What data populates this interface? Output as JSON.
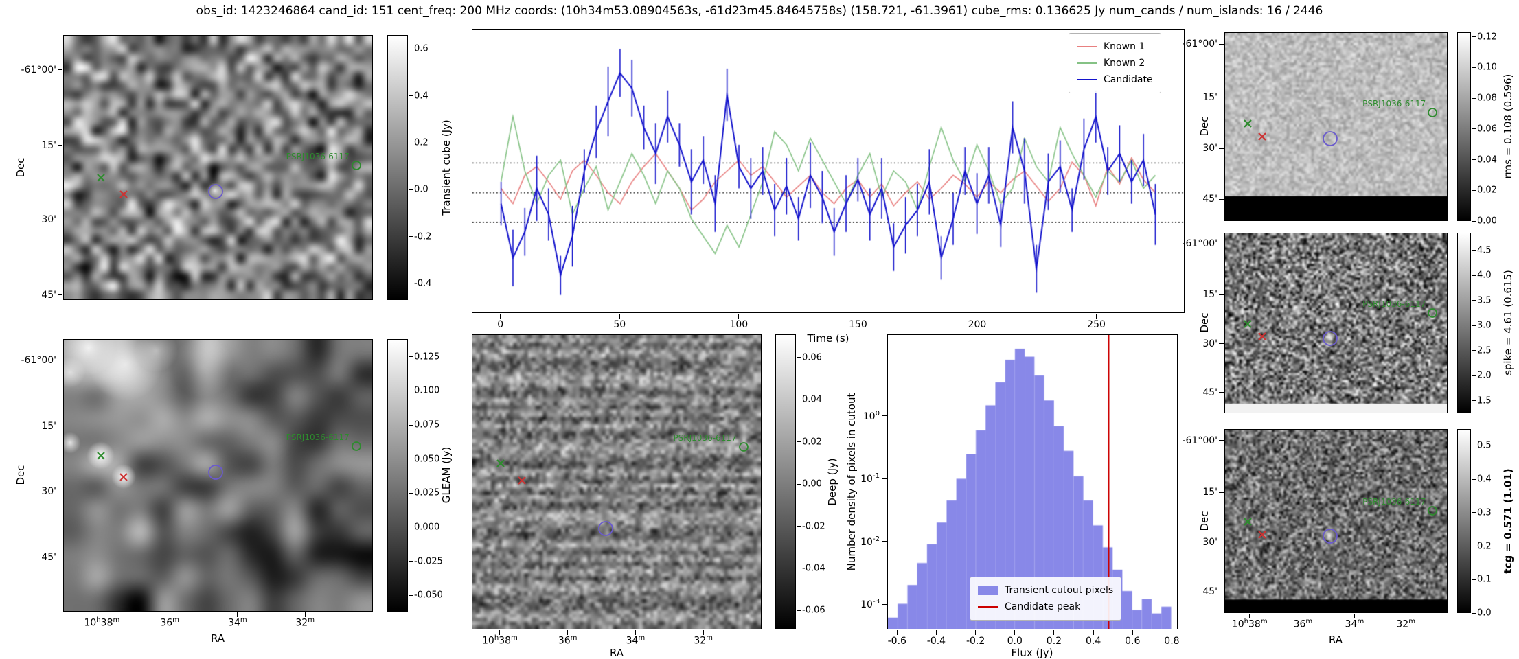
{
  "title": "obs_id: 1423246864 cand_id: 151 cent_freq: 200 MHz coords: (10h34m53.08904563s, -61d23m45.84645758s) (158.721, -61.3961) cube_rms: 0.136625 Jy num_cands / num_islands: 16 / 2446",
  "axes": {
    "dec_label": "Dec",
    "ra_label": "RA",
    "dec_ticks": [
      "-61°00'",
      "15'",
      "30'",
      "45'"
    ],
    "ra_ticks": [
      "10h38m",
      "36m",
      "34m",
      "32m"
    ]
  },
  "markers": {
    "known2": {
      "type": "x",
      "color": "#2e8b2e"
    },
    "known1": {
      "type": "x",
      "color": "#cc3333"
    },
    "candidate": {
      "type": "circle",
      "color": "#6a5acd"
    },
    "catalog": {
      "type": "circle",
      "color": "#2e8b2e",
      "label": "PSRJ1036-6117"
    }
  },
  "colorbars": {
    "transient": {
      "label": "Transient cube (Jy)",
      "vmin": -0.47,
      "vmax": 0.66,
      "ticks": [
        "0.6",
        "0.4",
        "0.2",
        "0.0",
        "-0.2",
        "-0.4"
      ]
    },
    "gleam": {
      "label": "GLEAM (Jy)",
      "vmin": -0.062,
      "vmax": 0.138,
      "ticks": [
        "0.125",
        "0.100",
        "0.075",
        "0.050",
        "0.025",
        "0.000",
        "-0.025",
        "-0.050"
      ]
    },
    "deep": {
      "label": "Deep (Jy)",
      "vmin": -0.069,
      "vmax": 0.071,
      "ticks": [
        "0.06",
        "0.04",
        "0.02",
        "0.00",
        "-0.02",
        "-0.04",
        "-0.06"
      ]
    },
    "rms": {
      "label": "rms = 0.108 (0.596)",
      "vmin": 0.0,
      "vmax": 0.123,
      "ticks": [
        "0.12",
        "0.10",
        "0.08",
        "0.06",
        "0.04",
        "0.02",
        "0.00"
      ]
    },
    "spike": {
      "label": "spike = 4.61 (0.615)",
      "vmin": 1.25,
      "vmax": 4.85,
      "ticks": [
        "4.5",
        "4.0",
        "3.5",
        "3.0",
        "2.5",
        "2.0",
        "1.5"
      ]
    },
    "tcg": {
      "label": "tcg = 0.571 (1.01)",
      "bold": true,
      "vmin": 0.0,
      "vmax": 0.55,
      "ticks": [
        "0.5",
        "0.4",
        "0.3",
        "0.2",
        "0.1",
        "0.0"
      ]
    }
  },
  "chart_data": [
    {
      "type": "line",
      "id": "lightcurve",
      "title": "",
      "xlabel": "Time (s)",
      "ylabel": "",
      "xlim": [
        -12,
        287
      ],
      "ylim": [
        -0.55,
        0.75
      ],
      "x_ticks": [
        0,
        50,
        100,
        150,
        200,
        250
      ],
      "hlines": [
        0.1366,
        0.0,
        -0.1366
      ],
      "legend_position": "upper right",
      "x": [
        0,
        5,
        10,
        15,
        20,
        25,
        30,
        35,
        40,
        45,
        50,
        55,
        60,
        65,
        70,
        75,
        80,
        85,
        90,
        95,
        100,
        105,
        110,
        115,
        120,
        125,
        130,
        135,
        140,
        145,
        150,
        155,
        160,
        165,
        170,
        175,
        180,
        185,
        190,
        195,
        200,
        205,
        210,
        215,
        220,
        225,
        230,
        235,
        240,
        245,
        250,
        255,
        260,
        265,
        270,
        275
      ],
      "series": [
        {
          "name": "Known 1",
          "color": "#e88080",
          "values": [
            0.02,
            -0.05,
            0.08,
            0.12,
            0.05,
            -0.03,
            0.1,
            0.15,
            0.08,
            0.0,
            -0.05,
            0.05,
            0.12,
            0.18,
            0.1,
            0.02,
            -0.08,
            -0.03,
            0.05,
            0.1,
            0.15,
            0.08,
            0.12,
            0.05,
            -0.02,
            0.03,
            0.08,
            0.0,
            -0.05,
            0.02,
            0.06,
            -0.02,
            0.04,
            -0.06,
            0.0,
            0.05,
            -0.03,
            0.02,
            0.08,
            0.04,
            -0.02,
            0.05,
            0.0,
            0.06,
            0.1,
            0.03,
            -0.04,
            0.02,
            0.14,
            0.08,
            -0.06,
            0.12,
            0.04,
            0.16,
            0.06,
            0.0
          ]
        },
        {
          "name": "Known 2",
          "color": "#85c285",
          "values": [
            0.05,
            0.35,
            0.1,
            -0.05,
            0.08,
            0.15,
            -0.1,
            0.02,
            0.12,
            -0.08,
            0.05,
            0.18,
            0.08,
            -0.05,
            0.1,
            0.02,
            -0.12,
            -0.2,
            -0.28,
            -0.15,
            -0.25,
            -0.1,
            0.05,
            0.28,
            0.22,
            0.1,
            0.25,
            0.15,
            0.05,
            -0.05,
            0.08,
            0.18,
            -0.02,
            0.1,
            0.05,
            -0.08,
            0.12,
            0.3,
            0.15,
            0.05,
            0.22,
            0.1,
            -0.05,
            0.02,
            0.25,
            0.12,
            0.05,
            0.3,
            0.18,
            0.08,
            -0.02,
            0.1,
            0.05,
            0.15,
            0.02,
            0.08
          ]
        },
        {
          "name": "Candidate",
          "color": "#1414cc",
          "values": [
            -0.05,
            -0.3,
            -0.18,
            0.02,
            -0.1,
            -0.38,
            -0.2,
            0.1,
            0.28,
            0.42,
            0.55,
            0.48,
            0.3,
            0.18,
            0.35,
            0.22,
            0.05,
            0.15,
            -0.05,
            0.45,
            0.12,
            0.02,
            0.1,
            -0.08,
            0.03,
            -0.12,
            0.08,
            -0.02,
            -0.18,
            -0.05,
            0.06,
            -0.1,
            0.02,
            -0.25,
            -0.15,
            -0.08,
            0.05,
            -0.3,
            -0.12,
            0.1,
            -0.05,
            0.08,
            -0.15,
            0.3,
            0.1,
            -0.35,
            0.05,
            0.12,
            -0.08,
            0.2,
            0.35,
            0.1,
            0.18,
            0.05,
            0.15,
            -0.1
          ],
          "yerr": [
            0.1,
            0.13,
            0.11,
            0.15,
            0.12,
            0.09,
            0.14,
            0.1,
            0.12,
            0.16,
            0.11,
            0.13,
            0.1,
            0.14,
            0.12,
            0.1,
            0.15,
            0.11,
            0.13,
            0.12,
            0.1,
            0.14,
            0.11,
            0.12,
            0.13,
            0.1,
            0.15,
            0.12,
            0.11,
            0.13,
            0.1,
            0.12,
            0.14,
            0.11,
            0.13,
            0.12,
            0.15,
            0.1,
            0.12,
            0.11,
            0.14,
            0.13,
            0.1,
            0.12,
            0.15,
            0.11,
            0.13,
            0.12,
            0.1,
            0.14,
            0.12,
            0.11,
            0.13,
            0.1,
            0.12,
            0.14
          ]
        }
      ]
    },
    {
      "type": "bar",
      "id": "pixel-histogram",
      "title": "",
      "xlabel": "Flux (Jy)",
      "ylabel": "Number density of pixels in cutout",
      "xlim": [
        -0.65,
        0.83
      ],
      "ylim_log10": [
        -3.4,
        1.3
      ],
      "x_ticks": [
        -0.6,
        -0.4,
        -0.2,
        0.0,
        0.2,
        0.4,
        0.6,
        0.8
      ],
      "y_tick_exponents": [
        0,
        -1,
        -2,
        -3
      ],
      "bin_width": 0.05,
      "bin_centers": [
        -0.625,
        -0.575,
        -0.525,
        -0.475,
        -0.425,
        -0.375,
        -0.325,
        -0.275,
        -0.225,
        -0.175,
        -0.125,
        -0.075,
        -0.025,
        0.025,
        0.075,
        0.125,
        0.175,
        0.225,
        0.275,
        0.325,
        0.375,
        0.425,
        0.475,
        0.525,
        0.575,
        0.625,
        0.675,
        0.725,
        0.775
      ],
      "densities": [
        0.0006,
        0.001,
        0.002,
        0.0045,
        0.009,
        0.02,
        0.045,
        0.1,
        0.25,
        0.6,
        1.5,
        3.5,
        8.0,
        12.0,
        9.0,
        4.5,
        1.8,
        0.7,
        0.28,
        0.11,
        0.045,
        0.018,
        0.008,
        0.0035,
        0.0016,
        0.0008,
        0.0012,
        0.0007,
        0.0009
      ],
      "candidate_peak": 0.48,
      "legend": [
        {
          "label": "Transient cutout pixels",
          "color": "#8888e8",
          "swatch": "patch"
        },
        {
          "label": "Candidate peak",
          "color": "#cc0000",
          "swatch": "line"
        }
      ],
      "legend_position": "lower center"
    }
  ]
}
